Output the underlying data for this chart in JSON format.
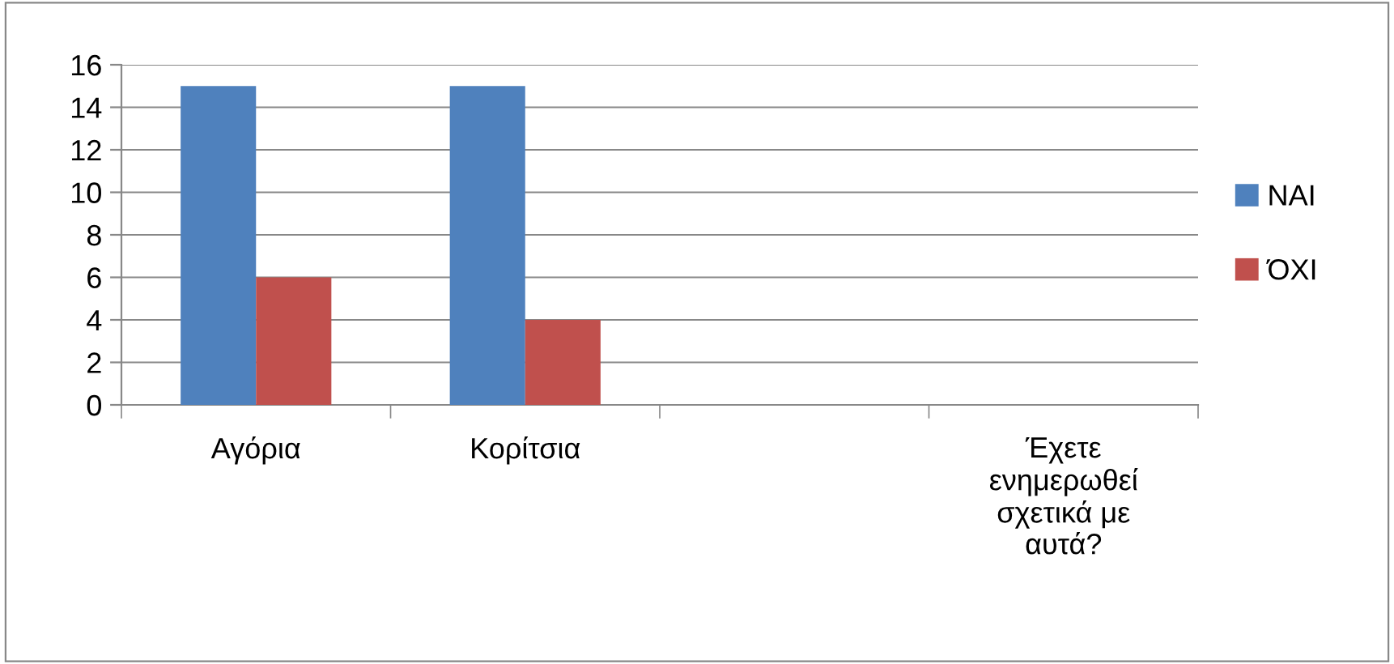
{
  "chart_data": {
    "type": "bar",
    "categories": [
      "Αγόρια",
      "Κορίτσια",
      null,
      "Έχετε\nενημερωθεί\nσχετικά με\nαυτά?"
    ],
    "series": [
      {
        "name": "NAI",
        "color": "#4f81bd",
        "values": [
          15,
          15,
          null,
          null
        ]
      },
      {
        "name": "ΌΧΙ",
        "color": "#c0504d",
        "values": [
          6,
          4,
          null,
          null
        ]
      }
    ],
    "ylim": [
      0,
      16
    ],
    "yticks": [
      0,
      2,
      4,
      6,
      8,
      10,
      12,
      14,
      16
    ],
    "grid": "y",
    "legend": "right"
  }
}
